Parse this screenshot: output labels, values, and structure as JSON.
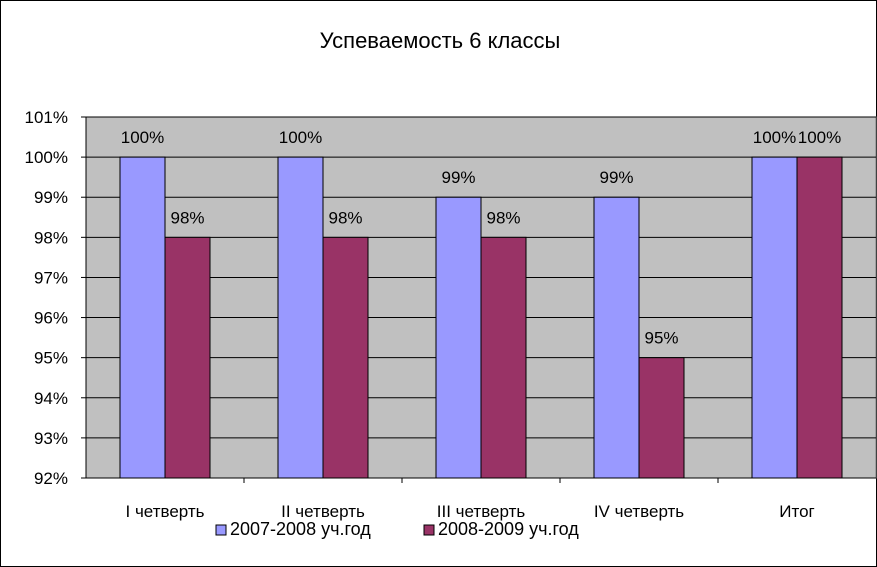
{
  "chart_data": {
    "type": "bar",
    "title": "Успеваемость 6 классы",
    "categories": [
      "I четверть",
      "II четверть",
      "III четверть",
      "IV четверть",
      "Итог"
    ],
    "series": [
      {
        "name": "2007-2008 уч.год",
        "values": [
          100,
          100,
          99,
          99,
          100
        ],
        "color": "#9999ff"
      },
      {
        "name": "2008-2009 уч.год",
        "values": [
          98,
          98,
          98,
          95,
          100
        ],
        "color": "#993366"
      }
    ],
    "value_suffix": "%",
    "ylim": [
      92,
      101
    ],
    "ytick_step": 1,
    "grid": true,
    "plot_background": "#c0c0c0",
    "legend_position": "bottom",
    "data_labels": true
  }
}
